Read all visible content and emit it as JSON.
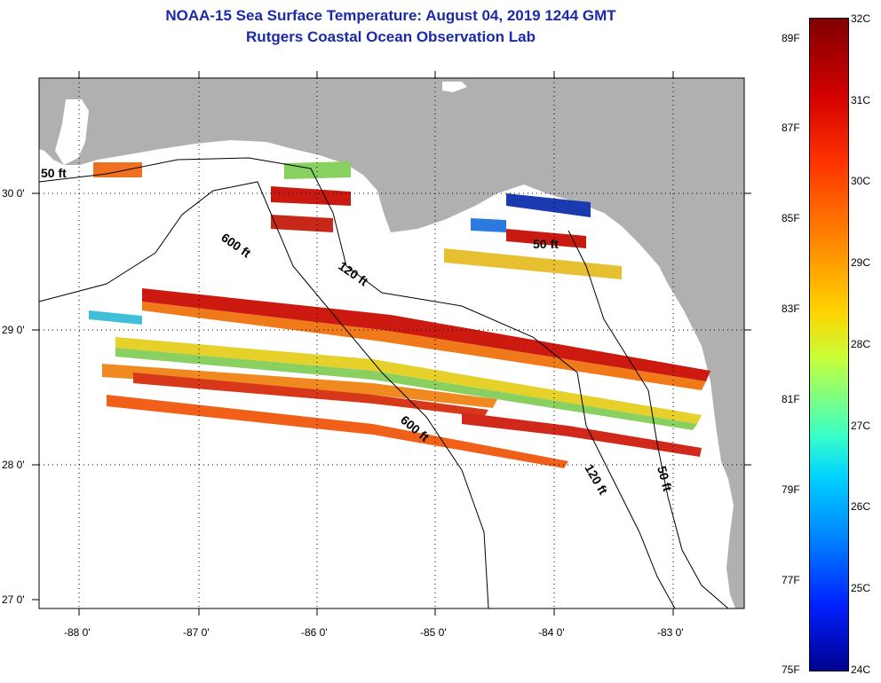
{
  "title": {
    "line1": "NOAA-15 Sea Surface Temperature:  August 04, 2019 1244 GMT",
    "line2": "Rutgers Coastal Ocean Observation Lab"
  },
  "map": {
    "lon_ticks": [
      "-88 0'",
      "-87 0'",
      "-86 0'",
      "-85 0'",
      "-84 0'",
      "-83 0'"
    ],
    "lat_ticks": [
      "30 0'",
      "29 0'",
      "28 0'",
      "27 0'"
    ],
    "contours": {
      "c50_west": "50 ft",
      "c600_north": "600 ft",
      "c120_north": "120 ft",
      "c50_east": "50 ft",
      "c600_south": "600 ft",
      "c120_south": "120 ft",
      "c50_south": "50 ft"
    },
    "colors": {
      "land": "#b0b0b0",
      "ocean": "#ffffff",
      "title": "#1a2aa8"
    }
  },
  "colorbar": {
    "celsius": [
      "32C",
      "31C",
      "30C",
      "29C",
      "28C",
      "27C",
      "26C",
      "25C",
      "24C"
    ],
    "fahrenheit": [
      "89F",
      "87F",
      "85F",
      "83F",
      "81F",
      "79F",
      "77F",
      "75F"
    ]
  }
}
